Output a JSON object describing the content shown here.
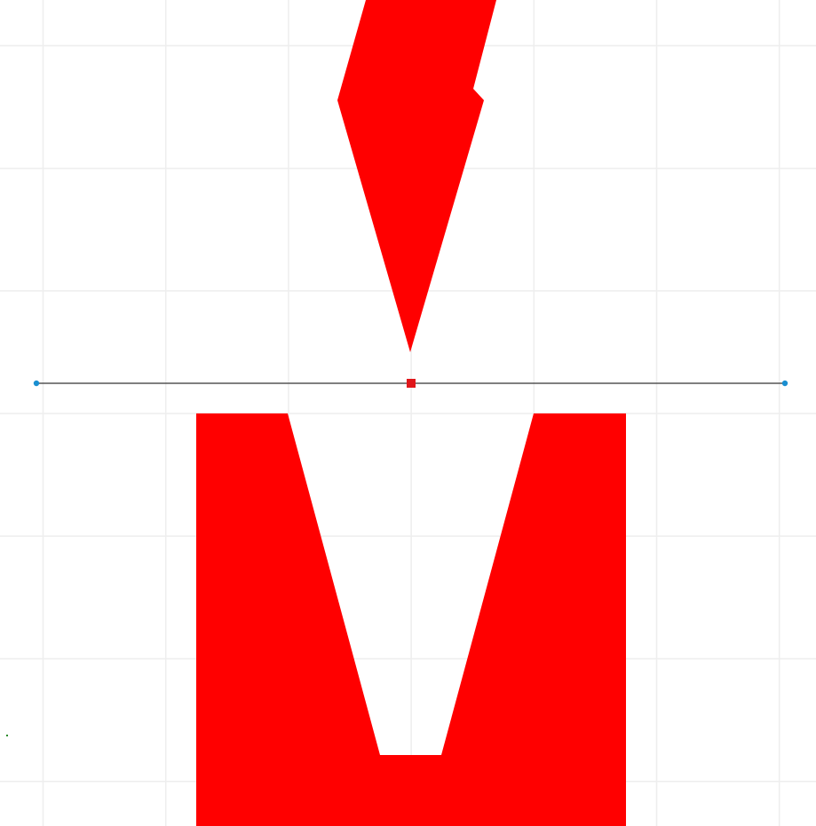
{
  "canvas": {
    "background_color": "#ffffff",
    "grid": {
      "visible": true,
      "color": "#eeeeee"
    },
    "shapes": [
      {
        "name": "red-arrowhead-shape",
        "kind": "polygon",
        "fill": "#ff0000"
      },
      {
        "name": "red-notch-shape",
        "kind": "polygon",
        "fill": "#ff0000"
      }
    ],
    "selection": {
      "line_color": "#555555",
      "endpoint_handle_color": "#1a8fd1",
      "center_handle_color": "#e0161a"
    },
    "stray_mark_color": "#2a8a2a"
  }
}
